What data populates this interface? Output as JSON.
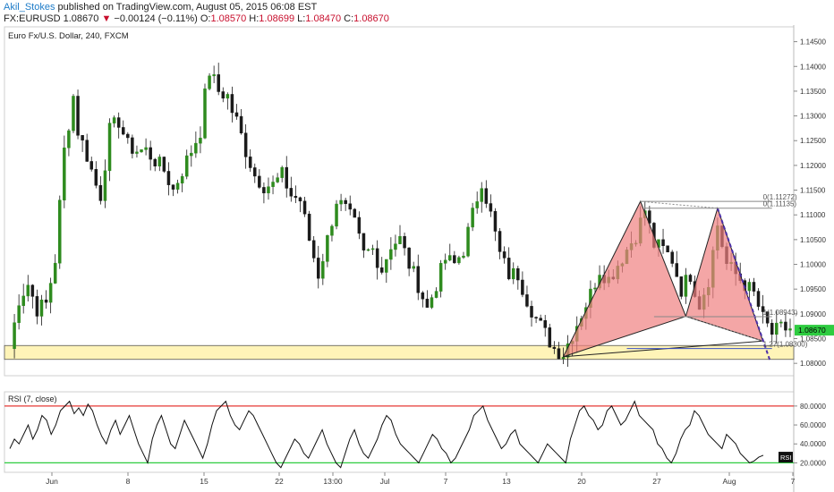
{
  "header": {
    "author": "Akil_Stokes",
    "published_text": "published on TradingView.com, August 05, 2015 06:08 EST",
    "symbol": "FX:EURUSD",
    "last": "1.08670",
    "change": "−0.00124 (−0.11%)",
    "o_label": "O:",
    "o": "1.08570",
    "h_label": "H:",
    "h": "1.08699",
    "l_label": "L:",
    "l": "1.08470",
    "c_label": "C:",
    "c": "1.08670"
  },
  "colors": {
    "up": "#2e8b1e",
    "down": "#1a1a1a",
    "pattern_fill": "#f08080",
    "zone_fill": "#fff4b8",
    "rsi_upper": "#e53935",
    "rsi_lower": "#2ecc40",
    "price_tag": "#2ecc40",
    "projection": "#4b2ea8"
  },
  "chart_data": [
    {
      "type": "candlestick",
      "title": "Euro Fx/U.S. Dollar, 240, FXCM",
      "ylim": [
        1.0775,
        1.148
      ],
      "y_ticks": [
        "1.14500",
        "1.14000",
        "1.13500",
        "1.13000",
        "1.12500",
        "1.12000",
        "1.11500",
        "1.11000",
        "1.10500",
        "1.10000",
        "1.09500",
        "1.09000",
        "1.08500",
        "1.08000"
      ],
      "x_ticks": [
        "Jun",
        "8",
        "15",
        "22",
        "13:00",
        "Jul",
        "7",
        "13",
        "20",
        "27",
        "Aug",
        "7"
      ],
      "last_price": "1.08670",
      "price_path": [
        [
          0,
          1.083
        ],
        [
          2,
          1.093
        ],
        [
          4,
          1.096
        ],
        [
          6,
          1.091
        ],
        [
          8,
          1.092
        ],
        [
          10,
          1.101
        ],
        [
          12,
          1.123
        ],
        [
          14,
          1.134
        ],
        [
          15,
          1.127
        ],
        [
          17,
          1.122
        ],
        [
          19,
          1.116
        ],
        [
          20,
          1.114
        ],
        [
          22,
          1.127
        ],
        [
          24,
          1.129
        ],
        [
          26,
          1.124
        ],
        [
          28,
          1.123
        ],
        [
          30,
          1.123
        ],
        [
          32,
          1.121
        ],
        [
          34,
          1.119
        ],
        [
          36,
          1.115
        ],
        [
          38,
          1.119
        ],
        [
          40,
          1.123
        ],
        [
          42,
          1.127
        ],
        [
          43,
          1.134
        ],
        [
          44,
          1.139
        ],
        [
          46,
          1.135
        ],
        [
          48,
          1.134
        ],
        [
          49,
          1.131
        ],
        [
          50,
          1.129
        ],
        [
          52,
          1.123
        ],
        [
          54,
          1.118
        ],
        [
          56,
          1.116
        ],
        [
          58,
          1.116
        ],
        [
          60,
          1.118
        ],
        [
          62,
          1.114
        ],
        [
          64,
          1.113
        ],
        [
          66,
          1.105
        ],
        [
          68,
          1.098
        ],
        [
          70,
          1.105
        ],
        [
          72,
          1.113
        ],
        [
          74,
          1.111
        ],
        [
          76,
          1.108
        ],
        [
          78,
          1.102
        ],
        [
          80,
          1.103
        ],
        [
          82,
          1.099
        ],
        [
          84,
          1.104
        ],
        [
          86,
          1.105
        ],
        [
          88,
          1.1
        ],
        [
          90,
          1.096
        ],
        [
          92,
          1.091
        ],
        [
          94,
          1.096
        ],
        [
          96,
          1.101
        ],
        [
          98,
          1.1
        ],
        [
          100,
          1.103
        ],
        [
          102,
          1.11
        ],
        [
          104,
          1.117
        ],
        [
          106,
          1.11
        ],
        [
          108,
          1.102
        ],
        [
          110,
          1.098
        ],
        [
          112,
          1.098
        ],
        [
          114,
          1.093
        ],
        [
          116,
          1.089
        ],
        [
          118,
          1.086
        ],
        [
          120,
          1.083
        ],
        [
          122,
          1.082
        ],
        [
          124,
          1.086
        ],
        [
          126,
          1.09
        ],
        [
          128,
          1.094
        ],
        [
          130,
          1.099
        ],
        [
          132,
          1.097
        ],
        [
          134,
          1.1
        ],
        [
          136,
          1.103
        ],
        [
          138,
          1.106
        ],
        [
          140,
          1.111
        ],
        [
          142,
          1.104
        ],
        [
          144,
          1.103
        ],
        [
          146,
          1.101
        ],
        [
          148,
          1.095
        ],
        [
          150,
          1.098
        ],
        [
          152,
          1.092
        ],
        [
          154,
          1.097
        ],
        [
          156,
          1.108
        ],
        [
          158,
          1.1
        ],
        [
          160,
          1.098
        ],
        [
          162,
          1.096
        ],
        [
          164,
          1.094
        ],
        [
          166,
          1.089
        ],
        [
          168,
          1.086
        ],
        [
          170,
          1.087
        ]
      ],
      "pattern": {
        "points": [
          [
            122,
            1.08134
          ],
          [
            139,
            1.11272
          ],
          [
            149,
            1.0895
          ],
          [
            156,
            1.11135
          ],
          [
            166,
            1.0845
          ]
        ],
        "fill": "#f08080"
      },
      "support_zone": [
        1.0808,
        1.0836
      ],
      "annotations": [
        {
          "label": "0(1.11272)",
          "price": 1.11272
        },
        {
          "label": "0(1.11135)",
          "price": 1.11135
        },
        {
          "label": "1(1.08943)",
          "price": 1.08943
        },
        {
          "label": "1.27(1.08300)",
          "price": 1.083
        }
      ]
    },
    {
      "type": "line",
      "title": "RSI (7, close)",
      "legend_tag": "RSI",
      "ylim": [
        10,
        95
      ],
      "y_ticks": [
        "80.0000",
        "60.0000",
        "40.0000",
        "20.0000"
      ],
      "bands": [
        80,
        20
      ],
      "values": [
        35,
        45,
        40,
        50,
        60,
        45,
        55,
        70,
        65,
        50,
        60,
        75,
        80,
        85,
        72,
        78,
        70,
        82,
        75,
        60,
        48,
        40,
        55,
        65,
        50,
        60,
        70,
        55,
        40,
        30,
        20,
        45,
        60,
        70,
        55,
        40,
        35,
        50,
        65,
        55,
        45,
        35,
        25,
        40,
        60,
        75,
        80,
        85,
        70,
        60,
        55,
        65,
        75,
        70,
        60,
        50,
        40,
        30,
        20,
        15,
        25,
        35,
        45,
        40,
        30,
        25,
        35,
        45,
        55,
        40,
        30,
        20,
        15,
        30,
        45,
        55,
        40,
        30,
        25,
        35,
        45,
        60,
        70,
        65,
        50,
        40,
        35,
        30,
        25,
        20,
        30,
        40,
        50,
        45,
        35,
        30,
        20,
        25,
        35,
        45,
        55,
        70,
        75,
        80,
        65,
        55,
        45,
        35,
        40,
        50,
        55,
        40,
        35,
        30,
        25,
        20,
        30,
        40,
        35,
        30,
        25,
        20,
        45,
        60,
        75,
        80,
        70,
        65,
        55,
        60,
        75,
        80,
        70,
        60,
        65,
        75,
        85,
        70,
        65,
        60,
        55,
        40,
        35,
        25,
        20,
        30,
        45,
        55,
        60,
        75,
        70,
        60,
        50,
        45,
        40,
        35,
        50,
        45,
        40,
        30,
        25,
        20,
        22,
        26,
        28
      ]
    }
  ]
}
